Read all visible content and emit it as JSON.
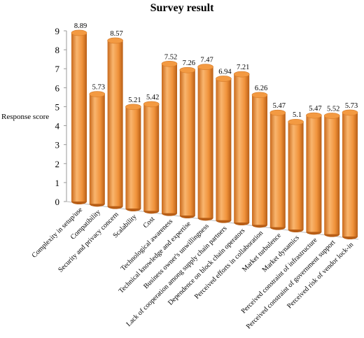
{
  "chart_data": {
    "type": "bar",
    "title": "Survey result",
    "y_label": "Response score",
    "categories": [
      "Complexity in setup/use",
      "Compatibility",
      "Security and privacy concern",
      "Scalability",
      "Cost",
      "Technological awareness",
      "Technical knowledge and expertise",
      "Business owner's unwillingness",
      "Lack of cooperation among supply chain partners",
      "Dependence on block chain operators",
      "Perceived efforts in collaboration",
      "Market turbulence",
      "Market dynamics",
      "Perceived constraint of infrastructure",
      "Perceived constraint of government support",
      "Perceived risk of vendor lock-in"
    ],
    "values": [
      8.89,
      5.73,
      8.57,
      5.21,
      5.42,
      7.52,
      7.26,
      7.47,
      6.94,
      7.21,
      6.26,
      5.47,
      5.1,
      5.47,
      5.52,
      5.73
    ],
    "color": "#f39a42",
    "ylim": [
      0,
      9
    ],
    "yticks": [
      0,
      1,
      2,
      3,
      4,
      5,
      6,
      7,
      8,
      9
    ]
  }
}
